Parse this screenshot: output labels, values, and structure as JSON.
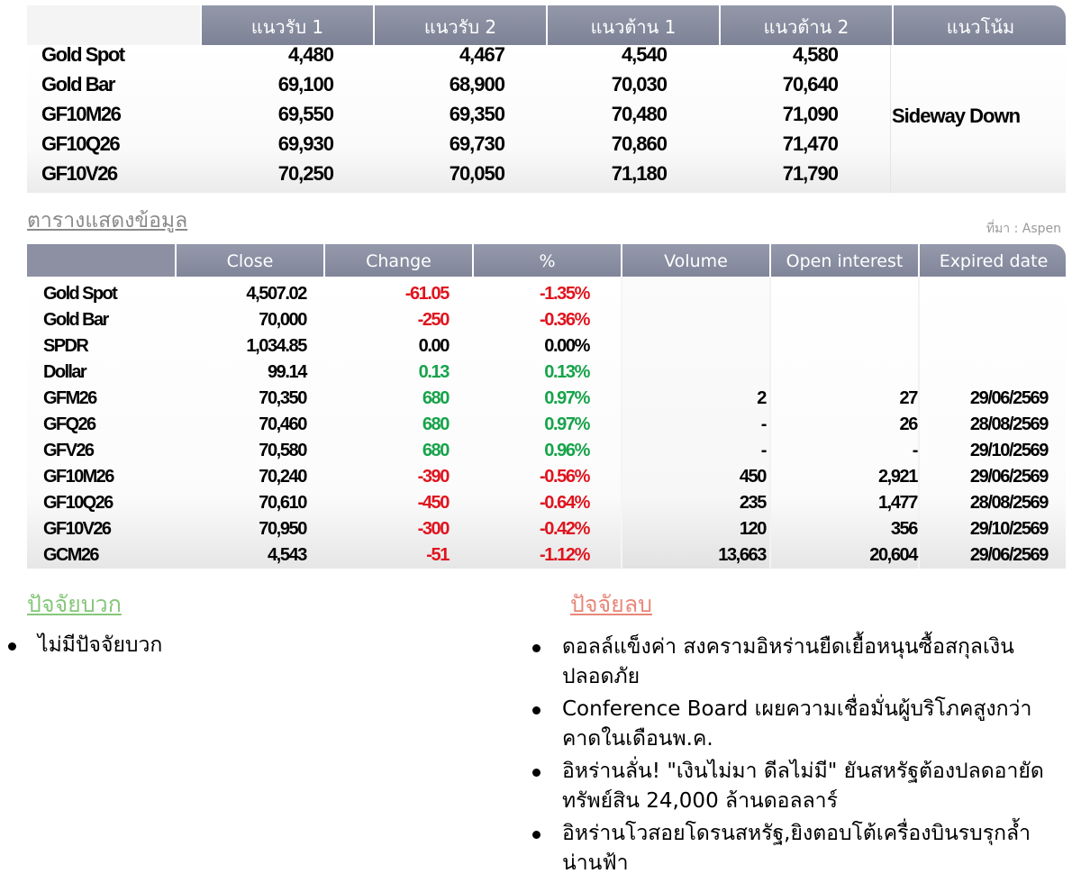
{
  "support_resistance": {
    "headers": [
      "แนวรับ 1",
      "แนวรับ 2",
      "แนวต้าน 1",
      "แนวต้าน 2",
      "แนวโน้ม"
    ],
    "rows": [
      {
        "name": "Gold Spot",
        "s1": "4,480",
        "s2": "4,467",
        "r1": "4,540",
        "r2": "4,580"
      },
      {
        "name": "Gold Bar",
        "s1": "69,100",
        "s2": "68,900",
        "r1": "70,030",
        "r2": "70,640"
      },
      {
        "name": "GF10M26",
        "s1": "69,550",
        "s2": "69,350",
        "r1": "70,480",
        "r2": "71,090"
      },
      {
        "name": "GF10Q26",
        "s1": "69,930",
        "s2": "69,730",
        "r1": "70,860",
        "r2": "71,470"
      },
      {
        "name": "GF10V26",
        "s1": "70,250",
        "s2": "70,050",
        "r1": "71,180",
        "r2": "71,790"
      }
    ],
    "trend": "Sideway Down"
  },
  "data_table": {
    "title": "ตารางแสดงข้อมูล",
    "source": "ที่มา : Aspen",
    "headers": [
      "Close",
      "Change",
      "%",
      "Volume",
      "Open interest",
      "Expired date"
    ],
    "rows": [
      {
        "name": "Gold Spot",
        "close": "4,507.02",
        "change": "-61.05",
        "pct": "-1.35%",
        "volume": "",
        "oi": "",
        "expiry": "",
        "dir": "red"
      },
      {
        "name": "Gold Bar",
        "close": "70,000",
        "change": "-250",
        "pct": "-0.36%",
        "volume": "",
        "oi": "",
        "expiry": "",
        "dir": "red"
      },
      {
        "name": "SPDR",
        "close": "1,034.85",
        "change": "0.00",
        "pct": "0.00%",
        "volume": "",
        "oi": "",
        "expiry": "",
        "dir": "black"
      },
      {
        "name": "Dollar",
        "close": "99.14",
        "change": "0.13",
        "pct": "0.13%",
        "volume": "",
        "oi": "",
        "expiry": "",
        "dir": "green"
      },
      {
        "name": "GFM26",
        "close": "70,350",
        "change": "680",
        "pct": "0.97%",
        "volume": "2",
        "oi": "27",
        "expiry": "29/06/2569",
        "dir": "green"
      },
      {
        "name": "GFQ26",
        "close": "70,460",
        "change": "680",
        "pct": "0.97%",
        "volume": "-",
        "oi": "26",
        "expiry": "28/08/2569",
        "dir": "green"
      },
      {
        "name": "GFV26",
        "close": "70,580",
        "change": "680",
        "pct": "0.96%",
        "volume": "-",
        "oi": "-",
        "expiry": "29/10/2569",
        "dir": "green"
      },
      {
        "name": "GF10M26",
        "close": "70,240",
        "change": "-390",
        "pct": "-0.56%",
        "volume": "450",
        "oi": "2,921",
        "expiry": "29/06/2569",
        "dir": "red"
      },
      {
        "name": "GF10Q26",
        "close": "70,610",
        "change": "-450",
        "pct": "-0.64%",
        "volume": "235",
        "oi": "1,477",
        "expiry": "28/08/2569",
        "dir": "red"
      },
      {
        "name": "GF10V26",
        "close": "70,950",
        "change": "-300",
        "pct": "-0.42%",
        "volume": "120",
        "oi": "356",
        "expiry": "29/10/2569",
        "dir": "red"
      },
      {
        "name": "GCM26",
        "close": "4,543",
        "change": "-51",
        "pct": "-1.12%",
        "volume": "13,663",
        "oi": "20,604",
        "expiry": "29/06/2569",
        "dir": "red"
      }
    ]
  },
  "factors": {
    "positive_title": "ปัจจัยบวก",
    "positive": [
      "ไม่มีปัจจัยบวก"
    ],
    "negative_title": "ปัจจัยลบ",
    "negative": [
      "ดอลล์แข็งค่า สงครามอิหร่านยืดเยื้อหนุนซื้อสกุลเงินปลอดภัย",
      "Conference Board เผยความเชื่อมั่นผู้บริโภคสูงกว่าคาดในเดือนพ.ค.",
      "อิหร่านลั่น! \"เงินไม่มา ดีลไม่มี\" ยันสหรัฐต้องปลดอายัดทรัพย์สิน 24,000 ล้านดอลลาร์",
      "อิหร่านโวสอยโดรนสหรัฐ,ยิงตอบโต้เครื่องบินรบรุกล้ำน่านฟ้า"
    ],
    "colors": {
      "positive": "#86c77a",
      "negative": "#e8877a"
    }
  },
  "colors": {
    "header_bg": "#868b9e",
    "up": "#16a34a",
    "down": "#e0141e"
  }
}
